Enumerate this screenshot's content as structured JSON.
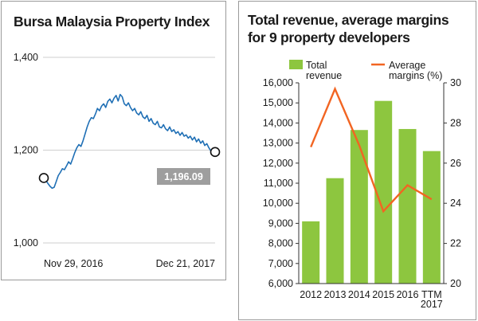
{
  "left_panel": {
    "title": "Bursa Malaysia Property Index"
  },
  "right_panel": {
    "title_line1": "Total revenue, average margins",
    "title_line2": "for 9 property developers"
  },
  "colors": {
    "index_line": "#1f6fb5",
    "bar": "#8dc63f",
    "margin_line": "#f26522",
    "badge": "#9e9e9e",
    "grid": "#cfcfcf"
  },
  "chart_data": [
    {
      "type": "line",
      "title": "Bursa Malaysia Property Index",
      "x_start_label": "Nov 29, 2016",
      "x_end_label": "Dec 21, 2017",
      "ylim": [
        1000,
        1400
      ],
      "yticks": [
        "1,000",
        "1,200",
        "1,400"
      ],
      "grid": true,
      "end_value_label": "1,196.09",
      "series_values": [
        1140,
        1135,
        1128,
        1122,
        1118,
        1120,
        1132,
        1145,
        1152,
        1160,
        1158,
        1166,
        1175,
        1170,
        1182,
        1195,
        1205,
        1212,
        1208,
        1220,
        1235,
        1250,
        1262,
        1270,
        1268,
        1278,
        1290,
        1285,
        1295,
        1300,
        1292,
        1305,
        1310,
        1302,
        1312,
        1318,
        1306,
        1320,
        1315,
        1300,
        1296,
        1302,
        1292,
        1285,
        1290,
        1280,
        1276,
        1283,
        1272,
        1268,
        1275,
        1262,
        1268,
        1258,
        1255,
        1262,
        1250,
        1248,
        1255,
        1246,
        1242,
        1250,
        1240,
        1244,
        1236,
        1240,
        1232,
        1238,
        1230,
        1233,
        1226,
        1230,
        1222,
        1228,
        1218,
        1224,
        1215,
        1220,
        1210,
        1214,
        1205,
        1198,
        1203,
        1196
      ]
    },
    {
      "type": "bar+line",
      "title": "Total revenue, average margins for 9 property developers",
      "categories": [
        "2012",
        "2013",
        "2014",
        "2015",
        "2016",
        "TTM 2017"
      ],
      "category_label_lines": [
        [
          "2012"
        ],
        [
          "2013"
        ],
        [
          "2014"
        ],
        [
          "2015"
        ],
        [
          "2016"
        ],
        [
          "TTM",
          "2017"
        ]
      ],
      "left_axis": {
        "ylim": [
          6000,
          16000
        ],
        "ticks": [
          "6,000",
          "7,000",
          "8,000",
          "9,000",
          "10,000",
          "11,000",
          "12,000",
          "13,000",
          "14,000",
          "15,000",
          "16,000"
        ]
      },
      "right_axis": {
        "ylim": [
          20,
          30
        ],
        "ticks": [
          "20",
          "22",
          "24",
          "26",
          "28",
          "30"
        ]
      },
      "series": [
        {
          "name": "Total revenue",
          "legend_lines": [
            "Total",
            "revenue"
          ],
          "kind": "bar",
          "axis": "left",
          "values": [
            9100,
            11250,
            13650,
            15100,
            13700,
            12600
          ]
        },
        {
          "name": "Average margins (%)",
          "legend_lines": [
            "Average",
            "margins (%)"
          ],
          "kind": "line",
          "axis": "right",
          "values": [
            26.8,
            29.7,
            26.9,
            23.6,
            24.9,
            24.2
          ]
        }
      ],
      "grid": false
    }
  ]
}
